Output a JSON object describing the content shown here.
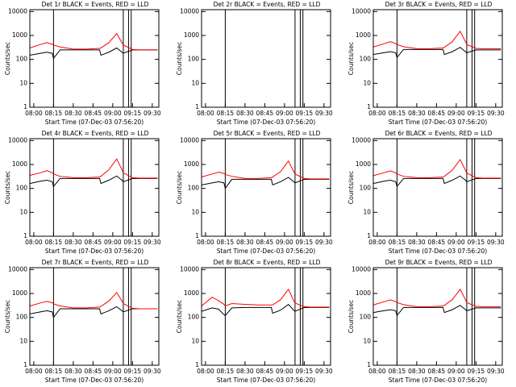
{
  "chart_data": [
    {
      "type": "line",
      "title": "Det 1r BLACK = Events, RED = LLD",
      "x_label": "Start Time (07-Dec-03 07:56:20)",
      "y_label": "Counts/sec",
      "log_y": true,
      "x": [
        -3,
        5,
        10,
        14,
        15,
        20,
        30,
        40,
        50,
        51,
        57,
        63,
        67,
        68,
        75,
        80,
        85,
        90,
        94
      ],
      "series": [
        {
          "color": "#000000",
          "values": [
            150,
            180,
            200,
            180,
            110,
            250,
            250,
            250,
            250,
            150,
            200,
            300,
            200,
            180,
            250,
            250,
            250,
            250,
            250
          ]
        },
        {
          "color": "#ff0000",
          "values": [
            300,
            420,
            500,
            430,
            400,
            330,
            270,
            270,
            290,
            300,
            500,
            1200,
            500,
            400,
            260,
            250,
            250,
            250,
            250
          ]
        }
      ],
      "vlines": [
        15,
        68,
        72,
        74
      ],
      "xlim": [
        -3,
        95
      ],
      "xticks": [
        {
          "value": 0,
          "label": "08:00"
        },
        {
          "value": 15,
          "label": "08:15"
        },
        {
          "value": 30,
          "label": "08:30"
        },
        {
          "value": 45,
          "label": "08:45"
        },
        {
          "value": 60,
          "label": "09:00"
        },
        {
          "value": 75,
          "label": "09:15"
        },
        {
          "value": 90,
          "label": "09:30"
        }
      ],
      "ylim": [
        1,
        12000
      ],
      "yticks": [
        1,
        10,
        100,
        1000,
        10000
      ]
    },
    {
      "type": "line",
      "title": "Det 2r BLACK = Events, RED = LLD",
      "x_label": "Start Time (07-Dec-03 07:56:20)",
      "y_label": "Counts/sec",
      "log_y": true,
      "x": [],
      "series": [
        {
          "color": "#000000",
          "values": []
        },
        {
          "color": "#ff0000",
          "values": []
        }
      ],
      "vlines": [
        15,
        68,
        72,
        74
      ],
      "xlim": [
        -3,
        95
      ],
      "xticks": [
        {
          "value": 0,
          "label": "08:00"
        },
        {
          "value": 15,
          "label": "08:15"
        },
        {
          "value": 30,
          "label": "08:30"
        },
        {
          "value": 45,
          "label": "08:45"
        },
        {
          "value": 60,
          "label": "09:00"
        },
        {
          "value": 75,
          "label": "09:15"
        },
        {
          "value": 90,
          "label": "09:30"
        }
      ],
      "ylim": [
        1,
        12000
      ],
      "yticks": [
        1,
        10,
        100,
        1000,
        10000
      ]
    },
    {
      "type": "line",
      "title": "Det 3r BLACK = Events, RED = LLD",
      "x_label": "Start Time (07-Dec-03 07:56:20)",
      "y_label": "Counts/sec",
      "log_y": true,
      "x": [
        -3,
        5,
        10,
        14,
        15,
        20,
        30,
        40,
        50,
        51,
        57,
        63,
        67,
        68,
        75,
        80,
        85,
        90,
        94
      ],
      "series": [
        {
          "color": "#000000",
          "values": [
            160,
            190,
            210,
            190,
            120,
            260,
            260,
            260,
            260,
            160,
            210,
            320,
            210,
            190,
            250,
            250,
            250,
            250,
            250
          ]
        },
        {
          "color": "#ff0000",
          "values": [
            330,
            450,
            550,
            460,
            420,
            340,
            280,
            280,
            300,
            320,
            550,
            1500,
            550,
            420,
            290,
            280,
            280,
            280,
            280
          ]
        }
      ],
      "vlines": [
        15,
        68,
        72,
        74
      ],
      "xlim": [
        -3,
        95
      ],
      "xticks": [
        {
          "value": 0,
          "label": "08:00"
        },
        {
          "value": 15,
          "label": "08:15"
        },
        {
          "value": 30,
          "label": "08:30"
        },
        {
          "value": 45,
          "label": "08:45"
        },
        {
          "value": 60,
          "label": "09:00"
        },
        {
          "value": 75,
          "label": "09:15"
        },
        {
          "value": 90,
          "label": "09:30"
        }
      ],
      "ylim": [
        1,
        12000
      ],
      "yticks": [
        1,
        10,
        100,
        1000,
        10000
      ]
    },
    {
      "type": "line",
      "title": "Det 4r BLACK = Events, RED = LLD",
      "x_label": "Start Time (07-Dec-03 07:56:20)",
      "y_label": "Counts/sec",
      "log_y": true,
      "x": [
        -3,
        5,
        10,
        14,
        15,
        20,
        30,
        40,
        50,
        51,
        57,
        63,
        67,
        68,
        75,
        80,
        85,
        90,
        94
      ],
      "series": [
        {
          "color": "#000000",
          "values": [
            160,
            200,
            220,
            190,
            120,
            260,
            260,
            260,
            260,
            160,
            220,
            330,
            220,
            190,
            260,
            260,
            260,
            260,
            260
          ]
        },
        {
          "color": "#ff0000",
          "values": [
            350,
            450,
            550,
            450,
            400,
            320,
            280,
            280,
            300,
            320,
            600,
            1700,
            600,
            450,
            280,
            270,
            270,
            270,
            270
          ]
        }
      ],
      "vlines": [
        15,
        68,
        72,
        74
      ],
      "xlim": [
        -3,
        95
      ],
      "xticks": [
        {
          "value": 0,
          "label": "08:00"
        },
        {
          "value": 15,
          "label": "08:15"
        },
        {
          "value": 30,
          "label": "08:30"
        },
        {
          "value": 45,
          "label": "08:45"
        },
        {
          "value": 60,
          "label": "09:00"
        },
        {
          "value": 75,
          "label": "09:15"
        },
        {
          "value": 90,
          "label": "09:30"
        }
      ],
      "ylim": [
        1,
        12000
      ],
      "yticks": [
        1,
        10,
        100,
        1000,
        10000
      ]
    },
    {
      "type": "line",
      "title": "Det 5r BLACK = Events, RED = LLD",
      "x_label": "Start Time (07-Dec-03 07:56:20)",
      "y_label": "Counts/sec",
      "log_y": true,
      "x": [
        -3,
        5,
        10,
        14,
        15,
        20,
        30,
        40,
        50,
        51,
        57,
        63,
        67,
        68,
        75,
        80,
        85,
        90,
        94
      ],
      "series": [
        {
          "color": "#000000",
          "values": [
            140,
            170,
            190,
            170,
            100,
            240,
            240,
            240,
            240,
            140,
            190,
            290,
            190,
            170,
            240,
            240,
            240,
            240,
            240
          ]
        },
        {
          "color": "#ff0000",
          "values": [
            300,
            400,
            480,
            420,
            380,
            320,
            260,
            260,
            280,
            300,
            500,
            1400,
            500,
            400,
            260,
            250,
            250,
            250,
            250
          ]
        }
      ],
      "vlines": [
        15,
        68,
        72,
        74
      ],
      "xlim": [
        -3,
        95
      ],
      "xticks": [
        {
          "value": 0,
          "label": "08:00"
        },
        {
          "value": 15,
          "label": "08:15"
        },
        {
          "value": 30,
          "label": "08:30"
        },
        {
          "value": 45,
          "label": "08:45"
        },
        {
          "value": 60,
          "label": "09:00"
        },
        {
          "value": 75,
          "label": "09:15"
        },
        {
          "value": 90,
          "label": "09:30"
        }
      ],
      "ylim": [
        1,
        12000
      ],
      "yticks": [
        1,
        10,
        100,
        1000,
        10000
      ]
    },
    {
      "type": "line",
      "title": "Det 6r BLACK = Events, RED = LLD",
      "x_label": "Start Time (07-Dec-03 07:56:20)",
      "y_label": "Counts/sec",
      "log_y": true,
      "x": [
        -3,
        5,
        10,
        14,
        15,
        20,
        30,
        40,
        50,
        51,
        57,
        63,
        67,
        68,
        75,
        80,
        85,
        90,
        94
      ],
      "series": [
        {
          "color": "#000000",
          "values": [
            160,
            200,
            220,
            190,
            120,
            260,
            260,
            260,
            260,
            160,
            220,
            330,
            220,
            190,
            260,
            260,
            260,
            260,
            260
          ]
        },
        {
          "color": "#ff0000",
          "values": [
            340,
            450,
            540,
            450,
            400,
            320,
            280,
            280,
            300,
            320,
            580,
            1600,
            580,
            440,
            280,
            270,
            270,
            270,
            270
          ]
        }
      ],
      "vlines": [
        15,
        68,
        72,
        74
      ],
      "xlim": [
        -3,
        95
      ],
      "xticks": [
        {
          "value": 0,
          "label": "08:00"
        },
        {
          "value": 15,
          "label": "08:15"
        },
        {
          "value": 30,
          "label": "08:30"
        },
        {
          "value": 45,
          "label": "08:45"
        },
        {
          "value": 60,
          "label": "09:00"
        },
        {
          "value": 75,
          "label": "09:15"
        },
        {
          "value": 90,
          "label": "09:30"
        }
      ],
      "ylim": [
        1,
        12000
      ],
      "yticks": [
        1,
        10,
        100,
        1000,
        10000
      ]
    },
    {
      "type": "line",
      "title": "Det 7r BLACK = Events, RED = LLD",
      "x_label": "Start Time (07-Dec-03 07:56:20)",
      "y_label": "Counts/sec",
      "log_y": true,
      "x": [
        -3,
        5,
        10,
        14,
        15,
        20,
        30,
        40,
        50,
        51,
        57,
        63,
        67,
        68,
        75,
        80,
        85,
        90,
        94
      ],
      "series": [
        {
          "color": "#000000",
          "values": [
            140,
            170,
            190,
            170,
            100,
            230,
            230,
            230,
            230,
            140,
            190,
            280,
            190,
            170,
            230,
            230,
            230,
            230,
            230
          ]
        },
        {
          "color": "#ff0000",
          "values": [
            300,
            400,
            470,
            410,
            370,
            300,
            250,
            250,
            270,
            290,
            480,
            1100,
            480,
            380,
            240,
            230,
            230,
            230,
            230
          ]
        }
      ],
      "vlines": [
        15,
        68,
        72,
        74
      ],
      "xlim": [
        -3,
        95
      ],
      "xticks": [
        {
          "value": 0,
          "label": "08:00"
        },
        {
          "value": 15,
          "label": "08:15"
        },
        {
          "value": 30,
          "label": "08:30"
        },
        {
          "value": 45,
          "label": "08:45"
        },
        {
          "value": 60,
          "label": "09:00"
        },
        {
          "value": 75,
          "label": "09:15"
        },
        {
          "value": 90,
          "label": "09:30"
        }
      ],
      "ylim": [
        1,
        12000
      ],
      "yticks": [
        1,
        10,
        100,
        1000,
        10000
      ]
    },
    {
      "type": "line",
      "title": "Det 8r BLACK = Events, RED = LLD",
      "x_label": "Start Time (07-Dec-03 07:56:20)",
      "y_label": "Counts/sec",
      "log_y": true,
      "x": [
        -3,
        5,
        10,
        14,
        15,
        20,
        30,
        40,
        50,
        51,
        57,
        63,
        67,
        68,
        75,
        80,
        85,
        90,
        94
      ],
      "series": [
        {
          "color": "#000000",
          "values": [
            180,
            250,
            220,
            130,
            120,
            250,
            260,
            260,
            260,
            150,
            200,
            350,
            200,
            180,
            260,
            260,
            260,
            260,
            260
          ]
        },
        {
          "color": "#ff0000",
          "values": [
            300,
            700,
            500,
            350,
            300,
            380,
            350,
            330,
            330,
            330,
            550,
            1500,
            500,
            400,
            280,
            270,
            270,
            270,
            270
          ]
        }
      ],
      "vlines": [
        15,
        68,
        72,
        74
      ],
      "xlim": [
        -3,
        95
      ],
      "xticks": [
        {
          "value": 0,
          "label": "08:00"
        },
        {
          "value": 15,
          "label": "08:15"
        },
        {
          "value": 30,
          "label": "08:30"
        },
        {
          "value": 45,
          "label": "08:45"
        },
        {
          "value": 60,
          "label": "09:00"
        },
        {
          "value": 75,
          "label": "09:15"
        },
        {
          "value": 90,
          "label": "09:30"
        }
      ],
      "ylim": [
        1,
        12000
      ],
      "yticks": [
        1,
        10,
        100,
        1000,
        10000
      ]
    },
    {
      "type": "line",
      "title": "Det 9r BLACK = Events, RED = LLD",
      "x_label": "Start Time (07-Dec-03 07:56:20)",
      "y_label": "Counts/sec",
      "log_y": true,
      "x": [
        -3,
        5,
        10,
        14,
        15,
        20,
        30,
        40,
        50,
        51,
        57,
        63,
        67,
        68,
        75,
        80,
        85,
        90,
        94
      ],
      "series": [
        {
          "color": "#000000",
          "values": [
            160,
            190,
            210,
            190,
            120,
            260,
            260,
            260,
            260,
            160,
            210,
            320,
            210,
            190,
            250,
            250,
            250,
            250,
            250
          ]
        },
        {
          "color": "#ff0000",
          "values": [
            330,
            450,
            540,
            460,
            420,
            340,
            280,
            280,
            300,
            320,
            550,
            1500,
            550,
            420,
            290,
            280,
            280,
            280,
            280
          ]
        }
      ],
      "vlines": [
        15,
        68,
        72,
        74
      ],
      "xlim": [
        -3,
        95
      ],
      "xticks": [
        {
          "value": 0,
          "label": "08:00"
        },
        {
          "value": 15,
          "label": "08:15"
        },
        {
          "value": 30,
          "label": "08:30"
        },
        {
          "value": 45,
          "label": "08:45"
        },
        {
          "value": 60,
          "label": "09:00"
        },
        {
          "value": 75,
          "label": "09:15"
        },
        {
          "value": 90,
          "label": "09:30"
        }
      ],
      "ylim": [
        1,
        12000
      ],
      "yticks": [
        1,
        10,
        100,
        1000,
        10000
      ]
    }
  ]
}
